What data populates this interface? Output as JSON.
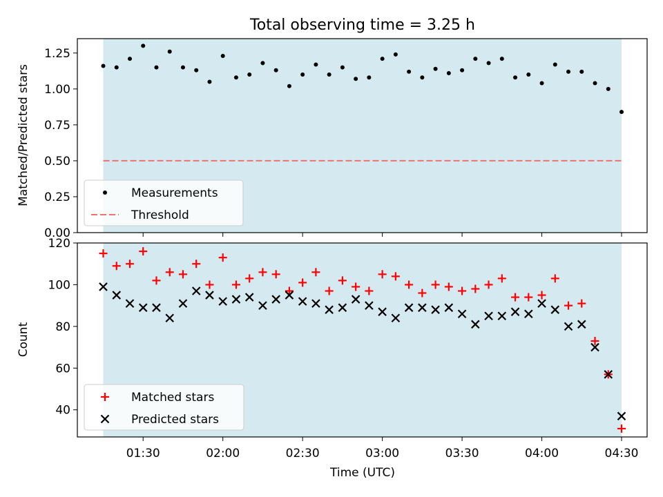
{
  "chart_data": [
    {
      "type": "scatter",
      "title": "Total observing time = 3.25 h",
      "ylabel": "Matched/Predicted stars",
      "xlabel": "",
      "ylim": [
        0,
        1.35
      ],
      "yticks": [
        "0.00",
        "0.25",
        "0.50",
        "0.75",
        "1.00",
        "1.25"
      ],
      "shaded_interval": [
        "01:15",
        "04:30"
      ],
      "shade_color": "#d4eaf0",
      "legend_position": "lower-left",
      "series": [
        {
          "name": "Measurements",
          "marker": "dot",
          "color": "#000000",
          "x": [
            "01:15",
            "01:20",
            "01:25",
            "01:30",
            "01:35",
            "01:40",
            "01:45",
            "01:50",
            "01:55",
            "02:00",
            "02:05",
            "02:10",
            "02:15",
            "02:20",
            "02:25",
            "02:30",
            "02:35",
            "02:40",
            "02:45",
            "02:50",
            "02:55",
            "03:00",
            "03:05",
            "03:10",
            "03:15",
            "03:20",
            "03:25",
            "03:30",
            "03:35",
            "03:40",
            "03:45",
            "03:50",
            "03:55",
            "04:00",
            "04:05",
            "04:10",
            "04:15",
            "04:20",
            "04:25",
            "04:30"
          ],
          "y": [
            1.16,
            1.15,
            1.21,
            1.3,
            1.15,
            1.26,
            1.15,
            1.13,
            1.05,
            1.23,
            1.08,
            1.1,
            1.18,
            1.13,
            1.02,
            1.1,
            1.17,
            1.1,
            1.15,
            1.07,
            1.08,
            1.21,
            1.24,
            1.12,
            1.08,
            1.14,
            1.11,
            1.13,
            1.21,
            1.18,
            1.21,
            1.08,
            1.1,
            1.04,
            1.17,
            1.12,
            1.12,
            1.04,
            1.0,
            0.84
          ]
        },
        {
          "name": "Threshold",
          "style": "dashed",
          "color": "#f07070",
          "x": [
            "01:15",
            "04:30"
          ],
          "y": [
            0.5,
            0.5
          ]
        }
      ]
    },
    {
      "type": "scatter",
      "title": "",
      "ylabel": "Count",
      "xlabel": "Time (UTC)",
      "ylim": [
        27,
        120
      ],
      "yticks": [
        "40",
        "60",
        "80",
        "100",
        "120"
      ],
      "xticks": [
        "01:30",
        "02:00",
        "02:30",
        "03:00",
        "03:30",
        "04:00",
        "04:30"
      ],
      "shaded_interval": [
        "01:15",
        "04:30"
      ],
      "shade_color": "#d4eaf0",
      "legend_position": "lower-left",
      "series": [
        {
          "name": "Matched stars",
          "marker": "plus",
          "color": "#ff0000",
          "x": [
            "01:15",
            "01:20",
            "01:25",
            "01:30",
            "01:35",
            "01:40",
            "01:45",
            "01:50",
            "01:55",
            "02:00",
            "02:05",
            "02:10",
            "02:15",
            "02:20",
            "02:25",
            "02:30",
            "02:35",
            "02:40",
            "02:45",
            "02:50",
            "02:55",
            "03:00",
            "03:05",
            "03:10",
            "03:15",
            "03:20",
            "03:25",
            "03:30",
            "03:35",
            "03:40",
            "03:45",
            "03:50",
            "03:55",
            "04:00",
            "04:05",
            "04:10",
            "04:15",
            "04:20",
            "04:25",
            "04:30"
          ],
          "y": [
            115,
            109,
            110,
            116,
            102,
            106,
            105,
            110,
            100,
            113,
            100,
            103,
            106,
            105,
            97,
            101,
            106,
            97,
            102,
            99,
            97,
            105,
            104,
            100,
            96,
            100,
            99,
            97,
            98,
            100,
            103,
            94,
            94,
            95,
            103,
            90,
            91,
            73,
            57,
            31
          ]
        },
        {
          "name": "Predicted stars",
          "marker": "x",
          "color": "#000000",
          "x": [
            "01:15",
            "01:20",
            "01:25",
            "01:30",
            "01:35",
            "01:40",
            "01:45",
            "01:50",
            "01:55",
            "02:00",
            "02:05",
            "02:10",
            "02:15",
            "02:20",
            "02:25",
            "02:30",
            "02:35",
            "02:40",
            "02:45",
            "02:50",
            "02:55",
            "03:00",
            "03:05",
            "03:10",
            "03:15",
            "03:20",
            "03:25",
            "03:30",
            "03:35",
            "03:40",
            "03:45",
            "03:50",
            "03:55",
            "04:00",
            "04:05",
            "04:10",
            "04:15",
            "04:20",
            "04:25",
            "04:30"
          ],
          "y": [
            99,
            95,
            91,
            89,
            89,
            84,
            91,
            97,
            95,
            92,
            93,
            94,
            90,
            93,
            95,
            92,
            91,
            88,
            89,
            93,
            90,
            87,
            84,
            89,
            89,
            88,
            89,
            86,
            81,
            85,
            85,
            87,
            86,
            91,
            88,
            80,
            81,
            70,
            57,
            37
          ]
        }
      ]
    }
  ]
}
